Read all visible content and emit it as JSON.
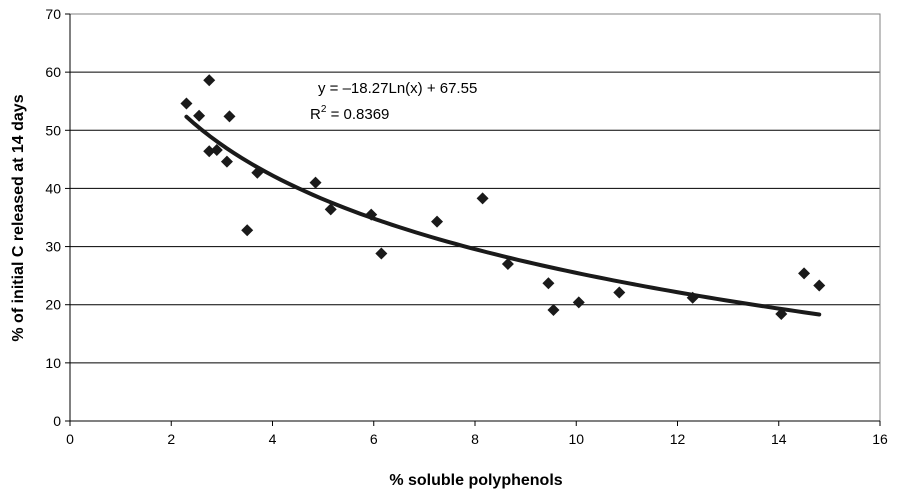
{
  "chart_data": {
    "type": "scatter",
    "xlabel": "% soluble polyphenols",
    "ylabel": "% of initial C released at 14 days",
    "xlim": [
      0,
      16
    ],
    "ylim": [
      0,
      70
    ],
    "xticks": [
      0,
      2,
      4,
      6,
      8,
      10,
      12,
      14,
      16
    ],
    "yticks": [
      0,
      10,
      20,
      30,
      40,
      50,
      60,
      70
    ],
    "grid": "horizontal",
    "legend": "none",
    "colors": {
      "marker": "#1a1a1a",
      "trendline": "#1a1a1a",
      "grid": "#000000"
    },
    "series": [
      {
        "marker": "diamond",
        "points": [
          {
            "x": 2.3,
            "y": 54.6
          },
          {
            "x": 2.55,
            "y": 52.5
          },
          {
            "x": 2.75,
            "y": 58.6
          },
          {
            "x": 2.75,
            "y": 46.4
          },
          {
            "x": 2.9,
            "y": 46.6
          },
          {
            "x": 3.1,
            "y": 44.6
          },
          {
            "x": 3.15,
            "y": 52.4
          },
          {
            "x": 3.5,
            "y": 32.8
          },
          {
            "x": 3.7,
            "y": 42.7
          },
          {
            "x": 4.85,
            "y": 41.0
          },
          {
            "x": 5.15,
            "y": 36.4
          },
          {
            "x": 5.95,
            "y": 35.5
          },
          {
            "x": 6.15,
            "y": 28.8
          },
          {
            "x": 7.25,
            "y": 34.3
          },
          {
            "x": 8.15,
            "y": 38.3
          },
          {
            "x": 8.65,
            "y": 27.0
          },
          {
            "x": 9.45,
            "y": 23.7
          },
          {
            "x": 9.55,
            "y": 19.1
          },
          {
            "x": 10.05,
            "y": 20.4
          },
          {
            "x": 10.85,
            "y": 22.1
          },
          {
            "x": 12.3,
            "y": 21.2
          },
          {
            "x": 14.05,
            "y": 18.4
          },
          {
            "x": 14.5,
            "y": 25.4
          },
          {
            "x": 14.8,
            "y": 23.3
          }
        ]
      }
    ],
    "trendline": {
      "type": "logarithmic",
      "a": -18.27,
      "b": 67.55,
      "x_range": [
        2.3,
        14.8
      ],
      "equation": "y = –18.27Ln(x) + 67.55",
      "r2_prefix": "R",
      "r2_sup": "2",
      "r2_suffix": " = 0.8369"
    }
  }
}
